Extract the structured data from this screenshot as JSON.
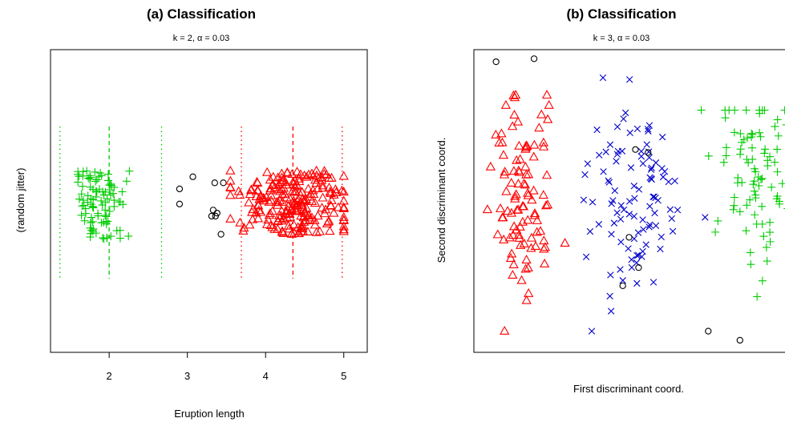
{
  "chart_data": [
    {
      "type": "scatter",
      "title": "(a) Classification",
      "subtitle": "k = 2, α = 0.03",
      "xlabel": "Eruption length",
      "ylabel": "(random jitter)",
      "xlim": [
        1.25,
        5.3
      ],
      "ylim": [
        0,
        1
      ],
      "xticks": [
        2,
        3,
        4,
        5
      ],
      "grid": false,
      "series": [
        {
          "marker": "plus",
          "color": "#00cc00",
          "generator": {
            "cx": 1.9,
            "sx": 0.15,
            "xmin": 1.6,
            "xmax": 2.75,
            "n": 95,
            "ymin": 0.37,
            "ymax": 0.6,
            "seed": 11
          }
        },
        {
          "marker": "circle",
          "color": "#000000",
          "points": [
            [
              2.9,
              0.54
            ],
            [
              3.07,
              0.58
            ],
            [
              2.9,
              0.49
            ],
            [
              3.35,
              0.56
            ],
            [
              3.46,
              0.56
            ],
            [
              3.33,
              0.47
            ],
            [
              3.36,
              0.45
            ],
            [
              3.38,
              0.46
            ],
            [
              3.43,
              0.39
            ],
            [
              3.31,
              0.45
            ]
          ]
        },
        {
          "marker": "triangle",
          "color": "#ff0000",
          "generator": {
            "cx": 4.35,
            "sx": 0.36,
            "xmin": 3.55,
            "xmax": 5.0,
            "n": 230,
            "ymin": 0.39,
            "ymax": 0.6,
            "seed": 23
          }
        }
      ],
      "ref_lines": [
        {
          "x": 1.37,
          "color": "#00cc00",
          "style": "dotted"
        },
        {
          "x": 2.0,
          "color": "#00cc00",
          "style": "dashed"
        },
        {
          "x": 2.67,
          "color": "#00cc00",
          "style": "dotted"
        },
        {
          "x": 3.69,
          "color": "#ff0000",
          "style": "dotted"
        },
        {
          "x": 4.35,
          "color": "#ff0000",
          "style": "dashed"
        },
        {
          "x": 4.98,
          "color": "#ff0000",
          "style": "dotted"
        }
      ]
    },
    {
      "type": "scatter",
      "title": "(b) Classification",
      "subtitle": "k = 3, α = 0.03",
      "xlabel": "First discriminant coord.",
      "ylabel": "Second discriminant coord.",
      "grid": false,
      "series": [
        {
          "marker": "triangle",
          "color": "#ff0000",
          "generator": {
            "cx": 0.15,
            "sx": 0.05,
            "xmin": 0.01,
            "xmax": 0.31,
            "cy": 0.5,
            "sy": 0.18,
            "ymin": 0.07,
            "ymax": 0.85,
            "n": 100,
            "seed": 31
          }
        },
        {
          "marker": "x",
          "color": "#0000cc",
          "generator": {
            "cx": 0.5,
            "sx": 0.08,
            "xmin": 0.31,
            "xmax": 0.73,
            "cy": 0.5,
            "sy": 0.16,
            "ymin": 0.07,
            "ymax": 0.93,
            "n": 100,
            "seed": 47
          }
        },
        {
          "marker": "plus",
          "color": "#00cc00",
          "generator": {
            "cx": 0.89,
            "sx": 0.06,
            "xmin": 0.7,
            "xmax": 1.0,
            "cy": 0.57,
            "sy": 0.15,
            "ymin": 0.11,
            "ymax": 0.8,
            "n": 90,
            "seed": 59
          }
        },
        {
          "marker": "circle",
          "color": "#000000",
          "points": [
            [
              0.07,
              0.96
            ],
            [
              0.19,
              0.97
            ],
            [
              0.51,
              0.67
            ],
            [
              0.55,
              0.66
            ],
            [
              0.49,
              0.38
            ],
            [
              0.52,
              0.28
            ],
            [
              0.47,
              0.22
            ],
            [
              0.74,
              0.07
            ],
            [
              0.84,
              0.04
            ]
          ]
        }
      ]
    }
  ]
}
